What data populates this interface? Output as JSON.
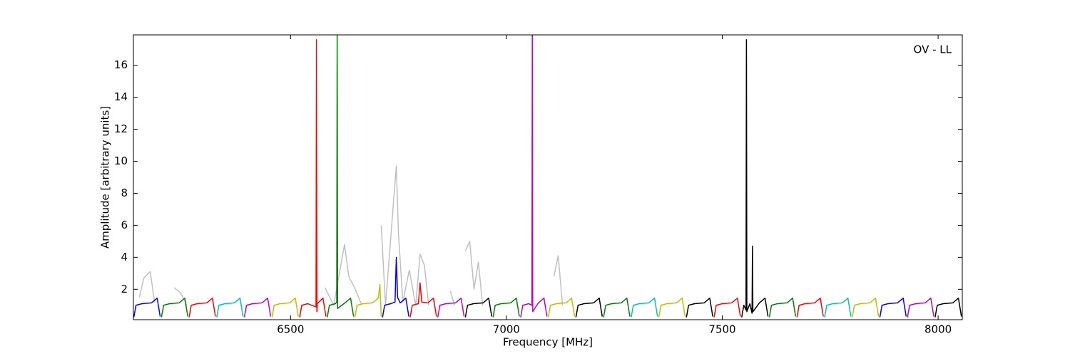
{
  "chart_data": {
    "type": "line",
    "annotation": "OV - LL",
    "xlabel": "Frequency [MHz]",
    "ylabel": "Amplitude [arbitrary units]",
    "xlim": [
      6136,
      8056
    ],
    "ylim": [
      0.1,
      17.9
    ],
    "xticks": [
      6500,
      7000,
      7500,
      8000
    ],
    "yticks": [
      2,
      4,
      6,
      8,
      10,
      12,
      14,
      16
    ],
    "series": [
      {
        "color": "#c0c0c0",
        "x": [
          6150,
          6160,
          6175,
          6185,
          6200,
          6230,
          6245,
          6260,
          6270,
          6580,
          6600,
          6625,
          6635,
          6650,
          6665,
          6680,
          6710,
          6720,
          6745,
          6750,
          6760,
          6775,
          6790,
          6800,
          6810,
          6820,
          6840,
          6870,
          6880,
          6890,
          6905,
          6915,
          6925,
          6935,
          6945,
          6960,
          7110,
          7120,
          7130
        ],
        "values": [
          1.5,
          2.7,
          3.1,
          1.2,
          null,
          2.1,
          1.8,
          1.0,
          null,
          2.1,
          1.0,
          4.8,
          2.8,
          2.0,
          1.0,
          null,
          6.0,
          1.0,
          9.7,
          5.5,
          1.2,
          3.2,
          1.0,
          4.2,
          3.5,
          1.0,
          null,
          1.9,
          1.0,
          null,
          4.4,
          5.0,
          2.0,
          3.7,
          1.0,
          null,
          2.8,
          4.1,
          1.0
        ]
      },
      {
        "color": "#0000ff",
        "x": [
          6137,
          6142,
          6156,
          6178,
          6191,
          6198
        ],
        "values": [
          0.25,
          1.0,
          1.1,
          1.15,
          1.45,
          0.3
        ]
      },
      {
        "color": "#008000",
        "x": [
          6201,
          6206,
          6220,
          6242,
          6255,
          6262
        ],
        "values": [
          0.25,
          1.0,
          1.1,
          1.15,
          1.45,
          0.3
        ]
      },
      {
        "color": "#ff0000",
        "x": [
          6265,
          6270,
          6284,
          6306,
          6319,
          6326
        ],
        "values": [
          0.25,
          1.0,
          1.1,
          1.15,
          1.45,
          0.3
        ]
      },
      {
        "color": "#00bfbf",
        "x": [
          6329,
          6334,
          6348,
          6370,
          6383,
          6390
        ],
        "values": [
          0.25,
          1.0,
          1.1,
          1.15,
          1.45,
          0.3
        ]
      },
      {
        "color": "#bf00bf",
        "x": [
          6393,
          6398,
          6412,
          6434,
          6447,
          6454
        ],
        "values": [
          0.25,
          1.0,
          1.1,
          1.15,
          1.45,
          0.3
        ]
      },
      {
        "color": "#bfbf00",
        "x": [
          6457,
          6462,
          6476,
          6498,
          6511,
          6518
        ],
        "values": [
          0.25,
          1.0,
          1.1,
          1.15,
          1.45,
          0.3
        ]
      },
      {
        "color": "#ff0000",
        "x": [
          6521,
          6526,
          6540,
          6559,
          6560,
          6561,
          6562,
          6575,
          6582
        ],
        "values": [
          0.25,
          1.0,
          1.1,
          0.9,
          17.6,
          0.6,
          1.1,
          1.45,
          0.3
        ]
      },
      {
        "color": "#008000",
        "x": [
          6585,
          6590,
          6604,
          6607,
          6608,
          6609,
          6626,
          6639,
          6646
        ],
        "values": [
          0.25,
          1.0,
          1.1,
          1.2,
          17.9,
          0.8,
          1.15,
          1.45,
          0.3
        ]
      },
      {
        "color": "#bfbf00",
        "x": [
          6649,
          6654,
          6668,
          6690,
          6703,
          6707,
          6710
        ],
        "values": [
          0.25,
          1.0,
          1.1,
          1.15,
          1.45,
          2.3,
          0.3
        ]
      },
      {
        "color": "#0000ff",
        "x": [
          6713,
          6718,
          6732,
          6742,
          6745,
          6748,
          6754,
          6767,
          6774
        ],
        "values": [
          0.25,
          1.0,
          1.1,
          1.2,
          4.0,
          1.5,
          1.15,
          1.45,
          0.3
        ]
      },
      {
        "color": "#ff0000",
        "x": [
          6777,
          6782,
          6796,
          6800,
          6804,
          6818,
          6831,
          6838
        ],
        "values": [
          0.25,
          1.0,
          1.1,
          2.4,
          1.2,
          1.15,
          1.45,
          0.3
        ]
      },
      {
        "color": "#bf00bf",
        "x": [
          6841,
          6846,
          6860,
          6882,
          6895,
          6902
        ],
        "values": [
          0.25,
          1.0,
          1.1,
          1.15,
          1.45,
          0.3
        ]
      },
      {
        "color": "#000000",
        "x": [
          6905,
          6910,
          6924,
          6946,
          6959,
          6966
        ],
        "values": [
          0.25,
          1.0,
          1.1,
          1.15,
          1.45,
          0.3
        ]
      },
      {
        "color": "#008000",
        "x": [
          6969,
          6974,
          6988,
          7010,
          7023,
          7030
        ],
        "values": [
          0.25,
          1.0,
          1.1,
          1.15,
          1.45,
          0.3
        ]
      },
      {
        "color": "#bf00bf",
        "x": [
          7033,
          7038,
          7052,
          7059,
          7060,
          7061,
          7074,
          7087,
          7094
        ],
        "values": [
          0.25,
          1.0,
          1.1,
          1.0,
          17.9,
          0.6,
          1.15,
          1.45,
          0.3
        ]
      },
      {
        "color": "#bfbf00",
        "x": [
          7097,
          7102,
          7116,
          7138,
          7151,
          7158
        ],
        "values": [
          0.25,
          1.0,
          1.1,
          1.15,
          1.45,
          0.3
        ]
      },
      {
        "color": "#000000",
        "x": [
          7161,
          7166,
          7180,
          7202,
          7215,
          7222
        ],
        "values": [
          0.25,
          1.0,
          1.1,
          1.15,
          1.45,
          0.3
        ]
      },
      {
        "color": "#008000",
        "x": [
          7225,
          7230,
          7244,
          7266,
          7279,
          7286
        ],
        "values": [
          0.25,
          1.0,
          1.1,
          1.15,
          1.45,
          0.3
        ]
      },
      {
        "color": "#00bfbf",
        "x": [
          7289,
          7294,
          7308,
          7330,
          7343,
          7350
        ],
        "values": [
          0.25,
          1.0,
          1.1,
          1.15,
          1.45,
          0.3
        ]
      },
      {
        "color": "#bfbf00",
        "x": [
          7353,
          7358,
          7372,
          7394,
          7407,
          7414
        ],
        "values": [
          0.25,
          1.0,
          1.1,
          1.15,
          1.45,
          0.3
        ]
      },
      {
        "color": "#000000",
        "x": [
          7417,
          7422,
          7436,
          7458,
          7471,
          7478
        ],
        "values": [
          0.25,
          1.0,
          1.1,
          1.15,
          1.45,
          0.3
        ]
      },
      {
        "color": "#ff0000",
        "x": [
          7481,
          7486,
          7500,
          7522,
          7535,
          7542
        ],
        "values": [
          0.25,
          1.0,
          1.1,
          1.15,
          1.45,
          0.3
        ]
      },
      {
        "color": "#000000",
        "x": [
          7545,
          7550,
          7555,
          7556,
          7557,
          7564,
          7569,
          7570,
          7571,
          7586,
          7599,
          7606
        ],
        "values": [
          0.25,
          1.0,
          0.7,
          17.6,
          0.6,
          1.1,
          0.5,
          4.7,
          0.6,
          1.15,
          1.45,
          0.3
        ]
      },
      {
        "color": "#008000",
        "x": [
          7609,
          7614,
          7628,
          7650,
          7663,
          7670
        ],
        "values": [
          0.25,
          1.0,
          1.1,
          1.15,
          1.45,
          0.3
        ]
      },
      {
        "color": "#ff0000",
        "x": [
          7673,
          7678,
          7692,
          7714,
          7727,
          7734
        ],
        "values": [
          0.25,
          1.0,
          1.1,
          1.15,
          1.45,
          0.3
        ]
      },
      {
        "color": "#00bfbf",
        "x": [
          7737,
          7742,
          7756,
          7778,
          7791,
          7798
        ],
        "values": [
          0.25,
          1.0,
          1.1,
          1.15,
          1.45,
          0.3
        ]
      },
      {
        "color": "#bfbf00",
        "x": [
          7801,
          7806,
          7820,
          7842,
          7855,
          7862
        ],
        "values": [
          0.25,
          1.0,
          1.1,
          1.15,
          1.45,
          0.3
        ]
      },
      {
        "color": "#0000ff",
        "x": [
          7865,
          7870,
          7884,
          7906,
          7919,
          7926
        ],
        "values": [
          0.25,
          1.0,
          1.1,
          1.15,
          1.45,
          0.3
        ]
      },
      {
        "color": "#bf00bf",
        "x": [
          7929,
          7934,
          7948,
          7970,
          7983,
          7990
        ],
        "values": [
          0.25,
          1.0,
          1.1,
          1.15,
          1.45,
          0.3
        ]
      },
      {
        "color": "#000000",
        "x": [
          7993,
          7998,
          8012,
          8034,
          8047,
          8054
        ],
        "values": [
          0.25,
          1.0,
          1.1,
          1.15,
          1.45,
          0.3
        ]
      }
    ]
  }
}
